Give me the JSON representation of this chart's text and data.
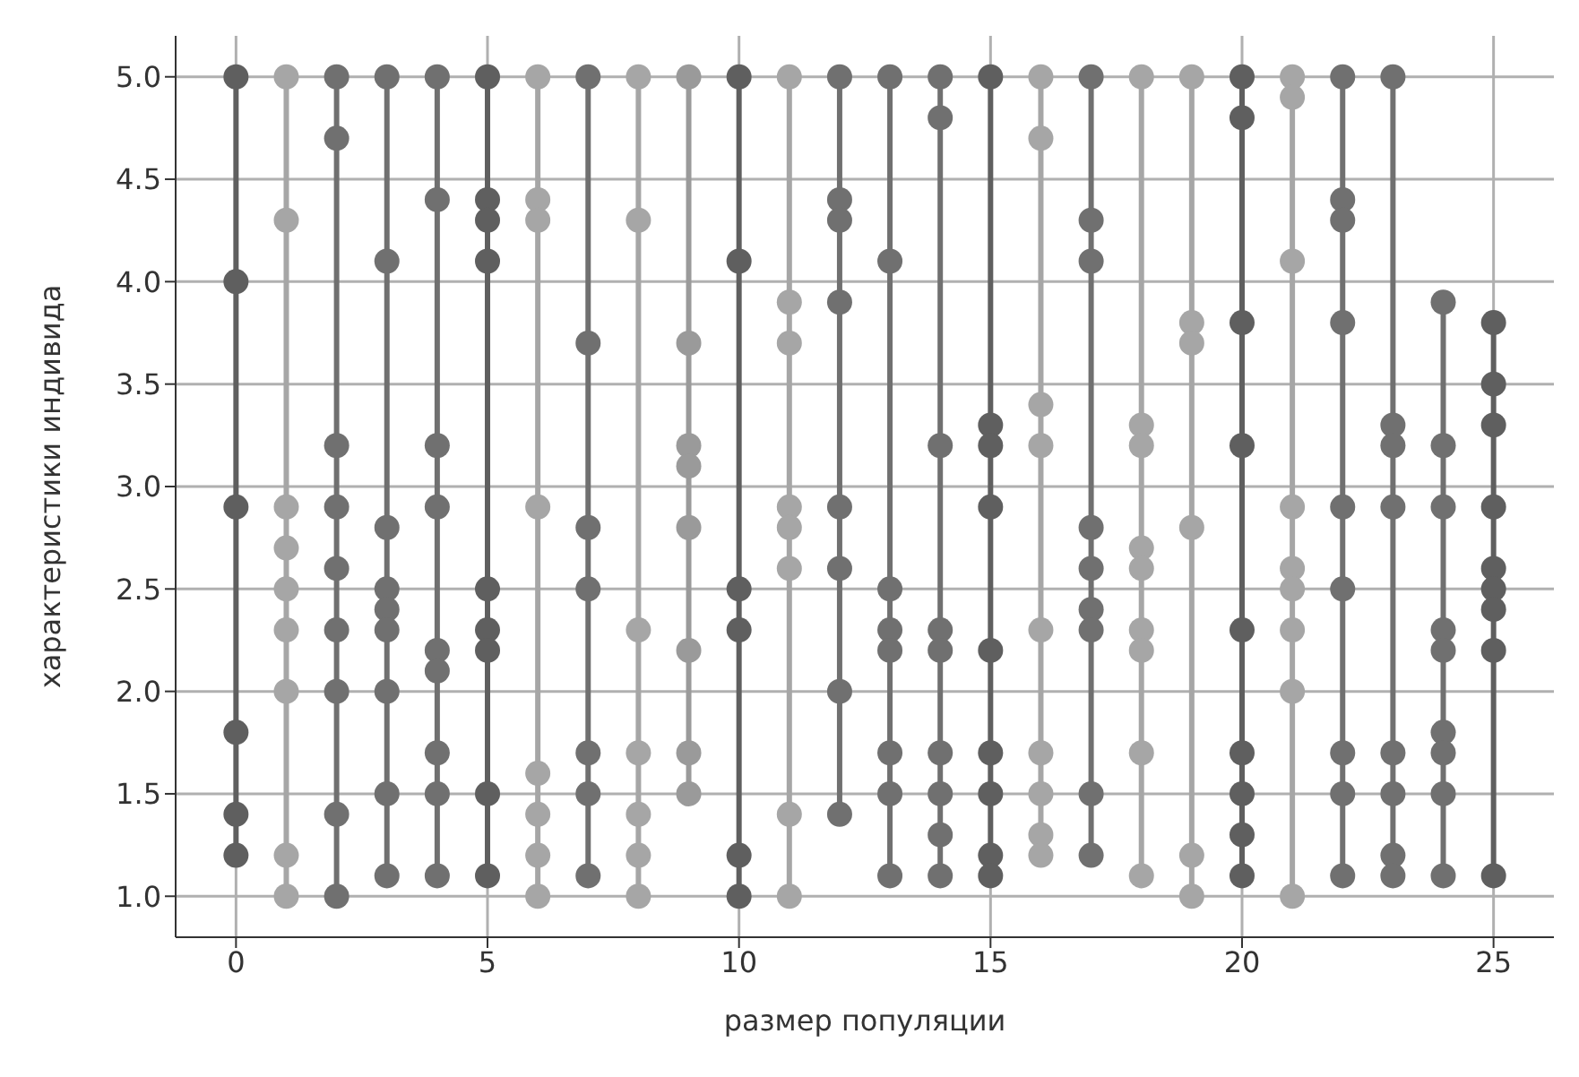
{
  "chart_data": {
    "type": "line",
    "xlabel": "размер популяции",
    "ylabel": "характеристики индивида",
    "xlim": [
      -1.2,
      26.2
    ],
    "ylim": [
      0.8,
      5.2
    ],
    "xticks": [
      0,
      5,
      10,
      15,
      20,
      25
    ],
    "yticks": [
      {
        "value": 1,
        "label": "1.0"
      },
      {
        "value": 1.5,
        "label": "1.5"
      },
      {
        "value": 2,
        "label": "2.0"
      },
      {
        "value": 2.5,
        "label": "2.5"
      },
      {
        "value": 3,
        "label": "3.0"
      },
      {
        "value": 3.5,
        "label": "3.5"
      },
      {
        "value": 4,
        "label": "4.0"
      },
      {
        "value": 4.5,
        "label": "4.5"
      },
      {
        "value": 5,
        "label": "5.0"
      }
    ],
    "grid": true,
    "marker": "circle",
    "line_style": "solid",
    "series": [
      {
        "color": "#5f5f5f",
        "x": [
          0,
          0,
          0,
          0,
          0,
          0
        ],
        "values": [
          5.0,
          4.0,
          2.9,
          1.8,
          1.4,
          1.2
        ]
      },
      {
        "color": "#a6a6a6",
        "x": [
          1,
          1,
          1,
          1,
          1,
          1,
          1,
          1,
          1
        ],
        "values": [
          5.0,
          4.3,
          2.9,
          2.7,
          2.5,
          2.3,
          2.0,
          1.2,
          1.0
        ]
      },
      {
        "color": "#707070",
        "x": [
          2,
          2,
          2,
          2,
          2,
          2,
          2,
          2,
          2
        ],
        "values": [
          5.0,
          4.7,
          3.2,
          2.9,
          2.6,
          2.3,
          2.0,
          1.4,
          1.0
        ]
      },
      {
        "color": "#707070",
        "x": [
          3,
          3,
          3,
          3,
          3,
          3,
          3,
          3,
          3
        ],
        "values": [
          5.0,
          4.1,
          2.8,
          2.5,
          2.4,
          2.3,
          2.0,
          1.5,
          1.1
        ]
      },
      {
        "color": "#707070",
        "x": [
          4,
          4,
          4,
          4,
          4,
          4,
          4,
          4,
          4
        ],
        "values": [
          5.0,
          4.4,
          3.2,
          2.9,
          2.2,
          2.1,
          1.7,
          1.5,
          1.1
        ]
      },
      {
        "color": "#5f5f5f",
        "x": [
          5,
          5,
          5,
          5,
          5,
          5,
          5,
          5,
          5
        ],
        "values": [
          5.0,
          4.4,
          4.3,
          4.1,
          2.5,
          2.3,
          2.2,
          1.5,
          1.1
        ]
      },
      {
        "color": "#a6a6a6",
        "x": [
          6,
          6,
          6,
          6,
          6,
          6,
          6,
          6
        ],
        "values": [
          5.0,
          4.4,
          4.3,
          2.9,
          1.6,
          1.4,
          1.2,
          1.0
        ]
      },
      {
        "color": "#707070",
        "x": [
          7,
          7,
          7,
          7,
          7,
          7,
          7
        ],
        "values": [
          5.0,
          3.7,
          2.8,
          2.5,
          1.7,
          1.5,
          1.1
        ]
      },
      {
        "color": "#a6a6a6",
        "x": [
          8,
          8,
          8,
          8,
          8,
          8,
          8
        ],
        "values": [
          5.0,
          4.3,
          2.3,
          1.7,
          1.4,
          1.2,
          1.0
        ]
      },
      {
        "color": "#9a9a9a",
        "x": [
          9,
          9,
          9,
          9,
          9,
          9,
          9,
          9
        ],
        "values": [
          5.0,
          3.7,
          3.2,
          3.1,
          2.8,
          2.2,
          1.7,
          1.5
        ]
      },
      {
        "color": "#5f5f5f",
        "x": [
          10,
          10,
          10,
          10,
          10,
          10
        ],
        "values": [
          5.0,
          4.1,
          2.5,
          2.3,
          1.2,
          1.0
        ]
      },
      {
        "color": "#a6a6a6",
        "x": [
          11,
          11,
          11,
          11,
          11,
          11,
          11,
          11
        ],
        "values": [
          5.0,
          3.9,
          3.7,
          2.9,
          2.8,
          2.6,
          1.4,
          1.0
        ]
      },
      {
        "color": "#707070",
        "x": [
          12,
          12,
          12,
          12,
          12,
          12,
          12,
          12
        ],
        "values": [
          5.0,
          4.4,
          4.3,
          3.9,
          2.9,
          2.6,
          2.0,
          1.4
        ]
      },
      {
        "color": "#707070",
        "x": [
          13,
          13,
          13,
          13,
          13,
          13,
          13,
          13
        ],
        "values": [
          5.0,
          4.1,
          2.5,
          2.3,
          2.2,
          1.7,
          1.5,
          1.1
        ]
      },
      {
        "color": "#707070",
        "x": [
          14,
          14,
          14,
          14,
          14,
          14,
          14,
          14,
          14
        ],
        "values": [
          5.0,
          4.8,
          3.2,
          2.3,
          2.2,
          1.7,
          1.5,
          1.3,
          1.1
        ]
      },
      {
        "color": "#5f5f5f",
        "x": [
          15,
          15,
          15,
          15,
          15,
          15,
          15,
          15,
          15
        ],
        "values": [
          5.0,
          3.3,
          3.2,
          2.9,
          2.2,
          1.7,
          1.5,
          1.2,
          1.1
        ]
      },
      {
        "color": "#a6a6a6",
        "x": [
          16,
          16,
          16,
          16,
          16,
          16,
          16,
          16,
          16
        ],
        "values": [
          5.0,
          4.7,
          3.4,
          3.2,
          2.3,
          1.7,
          1.5,
          1.3,
          1.2
        ]
      },
      {
        "color": "#707070",
        "x": [
          17,
          17,
          17,
          17,
          17,
          17,
          17,
          17,
          17
        ],
        "values": [
          5.0,
          4.3,
          4.1,
          2.8,
          2.6,
          2.4,
          2.3,
          1.5,
          1.2
        ]
      },
      {
        "color": "#a6a6a6",
        "x": [
          18,
          18,
          18,
          18,
          18,
          18,
          18,
          18,
          18
        ],
        "values": [
          5.0,
          3.3,
          3.2,
          2.7,
          2.6,
          2.3,
          2.2,
          1.7,
          1.1
        ]
      },
      {
        "color": "#a6a6a6",
        "x": [
          19,
          19,
          19,
          19,
          19,
          19
        ],
        "values": [
          5.0,
          3.8,
          3.7,
          2.8,
          1.2,
          1.0
        ]
      },
      {
        "color": "#5f5f5f",
        "x": [
          20,
          20,
          20,
          20,
          20,
          20,
          20,
          20,
          20
        ],
        "values": [
          5.0,
          4.8,
          3.8,
          3.2,
          2.3,
          1.7,
          1.5,
          1.3,
          1.1
        ]
      },
      {
        "color": "#a6a6a6",
        "x": [
          21,
          21,
          21,
          21,
          21,
          21,
          21,
          21,
          21
        ],
        "values": [
          5.0,
          4.9,
          4.1,
          2.9,
          2.6,
          2.5,
          2.3,
          2.0,
          1.0
        ]
      },
      {
        "color": "#707070",
        "x": [
          22,
          22,
          22,
          22,
          22,
          22,
          22,
          22,
          22
        ],
        "values": [
          5.0,
          4.4,
          4.3,
          3.8,
          2.9,
          2.5,
          1.7,
          1.5,
          1.1
        ]
      },
      {
        "color": "#707070",
        "x": [
          23,
          23,
          23,
          23,
          23,
          23,
          23,
          23
        ],
        "values": [
          5.0,
          3.3,
          3.2,
          2.9,
          1.7,
          1.5,
          1.2,
          1.1
        ]
      },
      {
        "color": "#707070",
        "x": [
          24,
          24,
          24,
          24,
          24,
          24,
          24,
          24,
          24
        ],
        "values": [
          3.9,
          3.2,
          2.9,
          2.3,
          2.2,
          1.8,
          1.7,
          1.5,
          1.1
        ]
      },
      {
        "color": "#5f5f5f",
        "x": [
          25,
          25,
          25,
          25,
          25,
          25,
          25,
          25,
          25
        ],
        "values": [
          3.8,
          3.5,
          3.3,
          2.9,
          2.6,
          2.5,
          2.4,
          2.2,
          1.1
        ]
      }
    ]
  }
}
